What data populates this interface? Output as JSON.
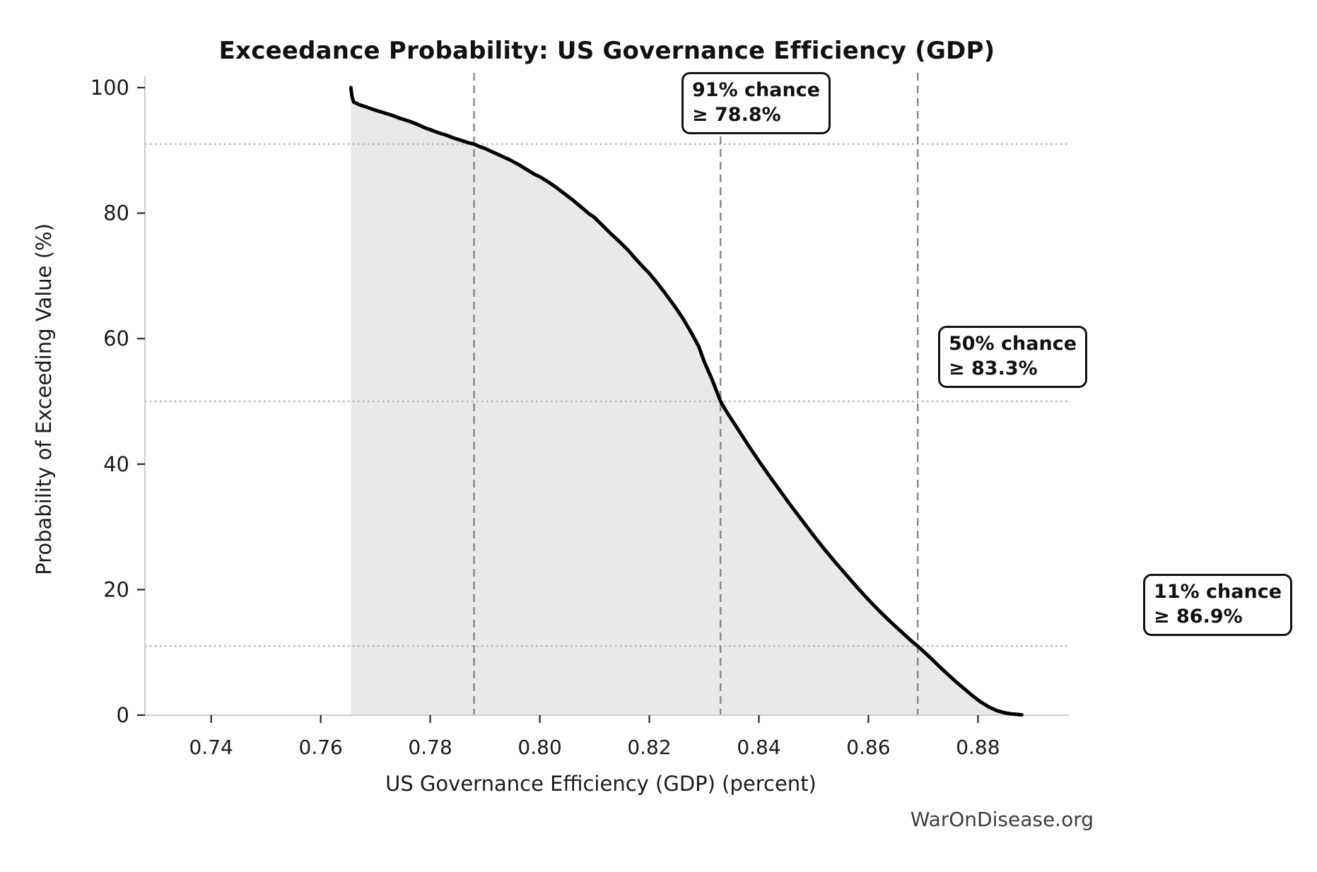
{
  "page": {
    "title": "Exceedance Probability: US Governance Efficiency (GDP)",
    "watermark": "WarOnDisease.org"
  },
  "chart_data": {
    "type": "line",
    "title": "Exceedance Probability: US Governance Efficiency (GDP)",
    "xlabel": "US Governance Efficiency (GDP) (percent)",
    "ylabel": "Probability of Exceeding Value (%)",
    "xlim": [
      0.7279,
      0.8966
    ],
    "ylim": [
      0,
      102.4
    ],
    "x_ticks": [
      0.74,
      0.76,
      0.78,
      0.8,
      0.82,
      0.84,
      0.86,
      0.88
    ],
    "x_tick_labels": [
      "0.74",
      "0.76",
      "0.78",
      "0.80",
      "0.82",
      "0.84",
      "0.86",
      "0.88"
    ],
    "y_ticks": [
      0,
      20,
      40,
      60,
      80,
      100
    ],
    "y_tick_labels": [
      "0",
      "20",
      "40",
      "60",
      "80",
      "100"
    ],
    "grid": "off",
    "legend": "none",
    "line_color": "#000000",
    "fill_color": "#e9e9e9",
    "dashed_line_color": "#8a8a8a",
    "dotted_line_color": "#b5b5b5",
    "series": [
      {
        "name": "Exceedance probability curve",
        "points": [
          [
            0.7655,
            100
          ],
          [
            0.7657,
            98.6
          ],
          [
            0.766,
            97.7
          ],
          [
            0.767,
            97.3
          ],
          [
            0.768,
            97.0
          ],
          [
            0.769,
            96.7
          ],
          [
            0.77,
            96.4
          ],
          [
            0.7715,
            96.0
          ],
          [
            0.773,
            95.6
          ],
          [
            0.7745,
            95.1
          ],
          [
            0.776,
            94.7
          ],
          [
            0.7775,
            94.2
          ],
          [
            0.779,
            93.6
          ],
          [
            0.78,
            93.3
          ],
          [
            0.7815,
            92.8
          ],
          [
            0.783,
            92.4
          ],
          [
            0.7845,
            91.9
          ],
          [
            0.786,
            91.5
          ],
          [
            0.787,
            91.2
          ],
          [
            0.788,
            91.0
          ],
          [
            0.789,
            90.6
          ],
          [
            0.79,
            90.3
          ],
          [
            0.7915,
            89.7
          ],
          [
            0.793,
            89.1
          ],
          [
            0.7945,
            88.5
          ],
          [
            0.796,
            87.8
          ],
          [
            0.7975,
            87.0
          ],
          [
            0.799,
            86.2
          ],
          [
            0.8,
            85.8
          ],
          [
            0.8015,
            85.0
          ],
          [
            0.803,
            84.1
          ],
          [
            0.8045,
            83.1
          ],
          [
            0.806,
            82.1
          ],
          [
            0.8075,
            81.0
          ],
          [
            0.809,
            79.9
          ],
          [
            0.81,
            79.3
          ],
          [
            0.8115,
            78.0
          ],
          [
            0.813,
            76.7
          ],
          [
            0.8145,
            75.5
          ],
          [
            0.816,
            74.2
          ],
          [
            0.8175,
            72.7
          ],
          [
            0.819,
            71.3
          ],
          [
            0.82,
            70.4
          ],
          [
            0.8215,
            68.8
          ],
          [
            0.823,
            67.1
          ],
          [
            0.8245,
            65.3
          ],
          [
            0.826,
            63.4
          ],
          [
            0.8275,
            61.2
          ],
          [
            0.829,
            58.8
          ],
          [
            0.83,
            56.4
          ],
          [
            0.8315,
            53.4
          ],
          [
            0.833,
            50.0
          ],
          [
            0.834,
            48.5
          ],
          [
            0.836,
            45.8
          ],
          [
            0.838,
            43.1
          ],
          [
            0.84,
            40.5
          ],
          [
            0.842,
            38.0
          ],
          [
            0.844,
            35.6
          ],
          [
            0.846,
            33.2
          ],
          [
            0.848,
            30.9
          ],
          [
            0.85,
            28.6
          ],
          [
            0.852,
            26.4
          ],
          [
            0.854,
            24.3
          ],
          [
            0.856,
            22.3
          ],
          [
            0.858,
            20.3
          ],
          [
            0.86,
            18.4
          ],
          [
            0.862,
            16.6
          ],
          [
            0.864,
            14.9
          ],
          [
            0.866,
            13.3
          ],
          [
            0.868,
            11.7
          ],
          [
            0.869,
            11.0
          ],
          [
            0.87,
            10.2
          ],
          [
            0.8715,
            9.0
          ],
          [
            0.873,
            7.7
          ],
          [
            0.8745,
            6.5
          ],
          [
            0.876,
            5.3
          ],
          [
            0.8775,
            4.2
          ],
          [
            0.879,
            3.1
          ],
          [
            0.8805,
            2.1
          ],
          [
            0.882,
            1.3
          ],
          [
            0.8835,
            0.7
          ],
          [
            0.885,
            0.35
          ],
          [
            0.886,
            0.2
          ],
          [
            0.887,
            0.12
          ],
          [
            0.888,
            0.05
          ]
        ]
      }
    ],
    "reference_lines": {
      "vertical_dashed_x": [
        0.788,
        0.833,
        0.869
      ],
      "horizontal_dotted_y": [
        91,
        50,
        11
      ]
    },
    "annotations": [
      {
        "line1": "91% chance",
        "line2": "≥ 78.8%",
        "x_value": 0.788,
        "probability_pct": 91
      },
      {
        "line1": "50% chance",
        "line2": "≥ 83.3%",
        "x_value": 0.833,
        "probability_pct": 50
      },
      {
        "line1": "11% chance",
        "line2": "≥ 86.9%",
        "x_value": 0.869,
        "probability_pct": 11
      }
    ]
  }
}
